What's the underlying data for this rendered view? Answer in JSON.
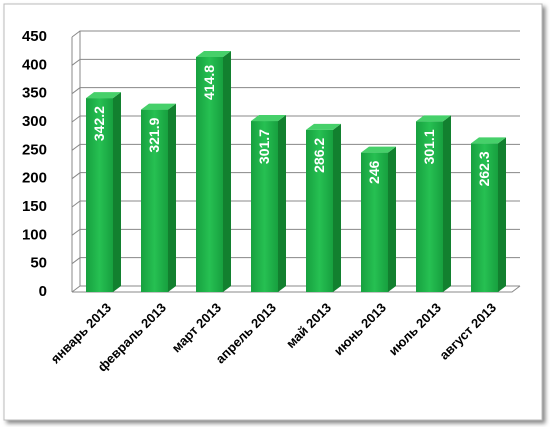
{
  "chart_data": {
    "type": "bar3d",
    "categories": [
      "январь 2013",
      "февраль 2013",
      "март 2013",
      "апрель 2013",
      "май 2013",
      "июнь 2013",
      "июль 2013",
      "август 2013"
    ],
    "values": [
      342.2,
      321.9,
      414.8,
      301.7,
      286.2,
      246,
      301.1,
      262.3
    ],
    "color": "#1eae48",
    "ylim": [
      0,
      450
    ],
    "yticks": [
      0,
      50,
      100,
      150,
      200,
      250,
      300,
      350,
      400,
      450
    ],
    "grid": true
  }
}
